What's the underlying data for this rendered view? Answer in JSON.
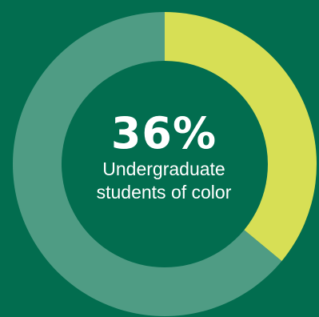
{
  "colors": {
    "background": "#026d4f",
    "highlight": "#d7df55",
    "remainder": "#4f9c84",
    "text": "#ffffff"
  },
  "center": {
    "value": "36%",
    "label_line1": "Undergraduate",
    "label_line2": "students of color"
  },
  "chart_data": {
    "type": "pie",
    "variant": "donut",
    "title": "",
    "slices": [
      {
        "value": 36
      },
      {
        "value": 64
      }
    ],
    "slice_colors": [
      "#d7df55",
      "#4f9c84"
    ],
    "start_angle": "top",
    "direction": "clockwise",
    "legend": "none"
  }
}
